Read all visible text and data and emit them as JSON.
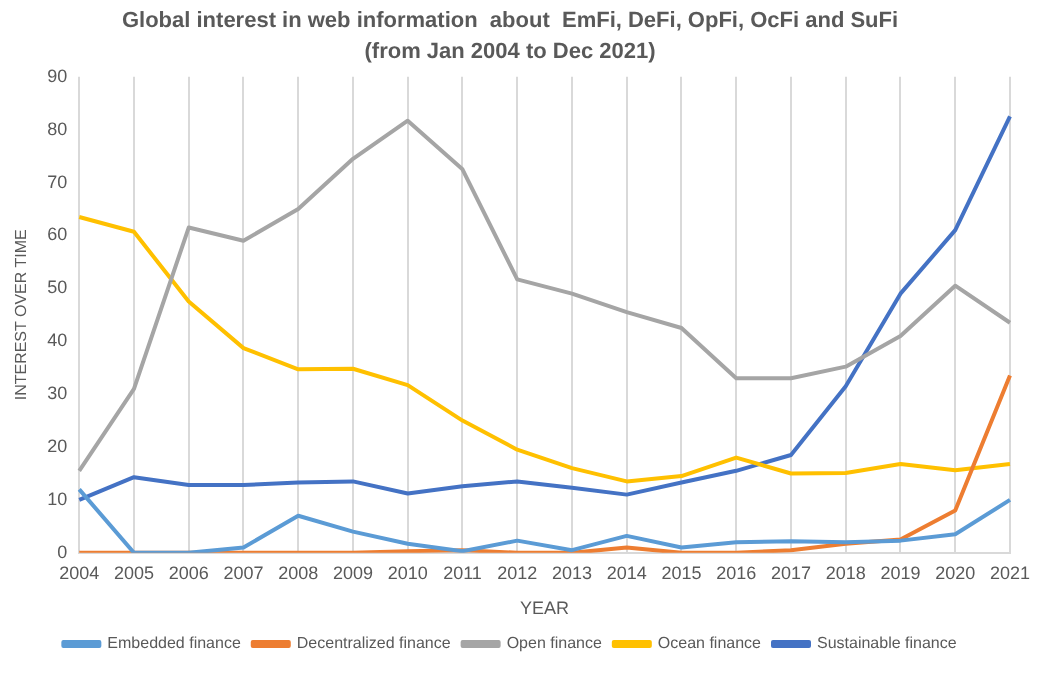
{
  "chart_data": {
    "type": "line",
    "title": "Global interest in web information  about  EmFi, DeFi, OpFi, OcFi and SuFi",
    "subtitle": "(from Jan 2004 to Dec 2021)",
    "xlabel": "YEAR",
    "ylabel": "INTEREST OVER TIME",
    "categories": [
      "2004",
      "2005",
      "2006",
      "2007",
      "2008",
      "2009",
      "2010",
      "2011",
      "2012",
      "2013",
      "2014",
      "2015",
      "2016",
      "2017",
      "2018",
      "2019",
      "2020",
      "2021"
    ],
    "series": [
      {
        "name": "Embedded finance",
        "color": "#5b9bd5",
        "values": [
          12,
          0,
          0,
          1,
          7,
          4,
          1.7,
          0.3,
          2.3,
          0.5,
          3.2,
          1,
          2,
          2.2,
          2,
          2.3,
          3.5,
          10
        ]
      },
      {
        "name": "Decentralized finance",
        "color": "#ed7d31",
        "values": [
          0,
          0,
          0,
          0,
          0,
          0,
          0.3,
          0.5,
          0,
          0,
          1,
          0,
          0,
          0.5,
          1.7,
          2.5,
          8,
          33.5
        ]
      },
      {
        "name": "Open finance",
        "color": "#a5a5a5",
        "values": [
          15.5,
          31,
          61.5,
          59,
          65,
          74.5,
          81.7,
          72.5,
          51.7,
          49,
          45.5,
          42.5,
          33,
          33,
          35.2,
          41,
          50.5,
          43.5
        ]
      },
      {
        "name": "Ocean finance",
        "color": "#ffc000",
        "values": [
          63.5,
          60.7,
          47.5,
          38.7,
          34.7,
          34.8,
          31.7,
          25,
          19.5,
          16,
          13.5,
          14.5,
          18,
          15,
          15.1,
          16.8,
          15.6,
          16.8
        ]
      },
      {
        "name": "Sustainable finance",
        "color": "#4472c4",
        "values": [
          10,
          14.3,
          12.8,
          12.8,
          13.3,
          13.5,
          11.2,
          12.6,
          13.5,
          12.3,
          11,
          13.3,
          15.5,
          18.5,
          31.5,
          49,
          61,
          82.5
        ]
      }
    ],
    "ylim": [
      0,
      90
    ],
    "yticks": [
      0,
      10,
      20,
      30,
      40,
      50,
      60,
      70,
      80,
      90
    ],
    "grid": "x",
    "legend": "bottom",
    "marker": "none",
    "line_style": "solid"
  }
}
